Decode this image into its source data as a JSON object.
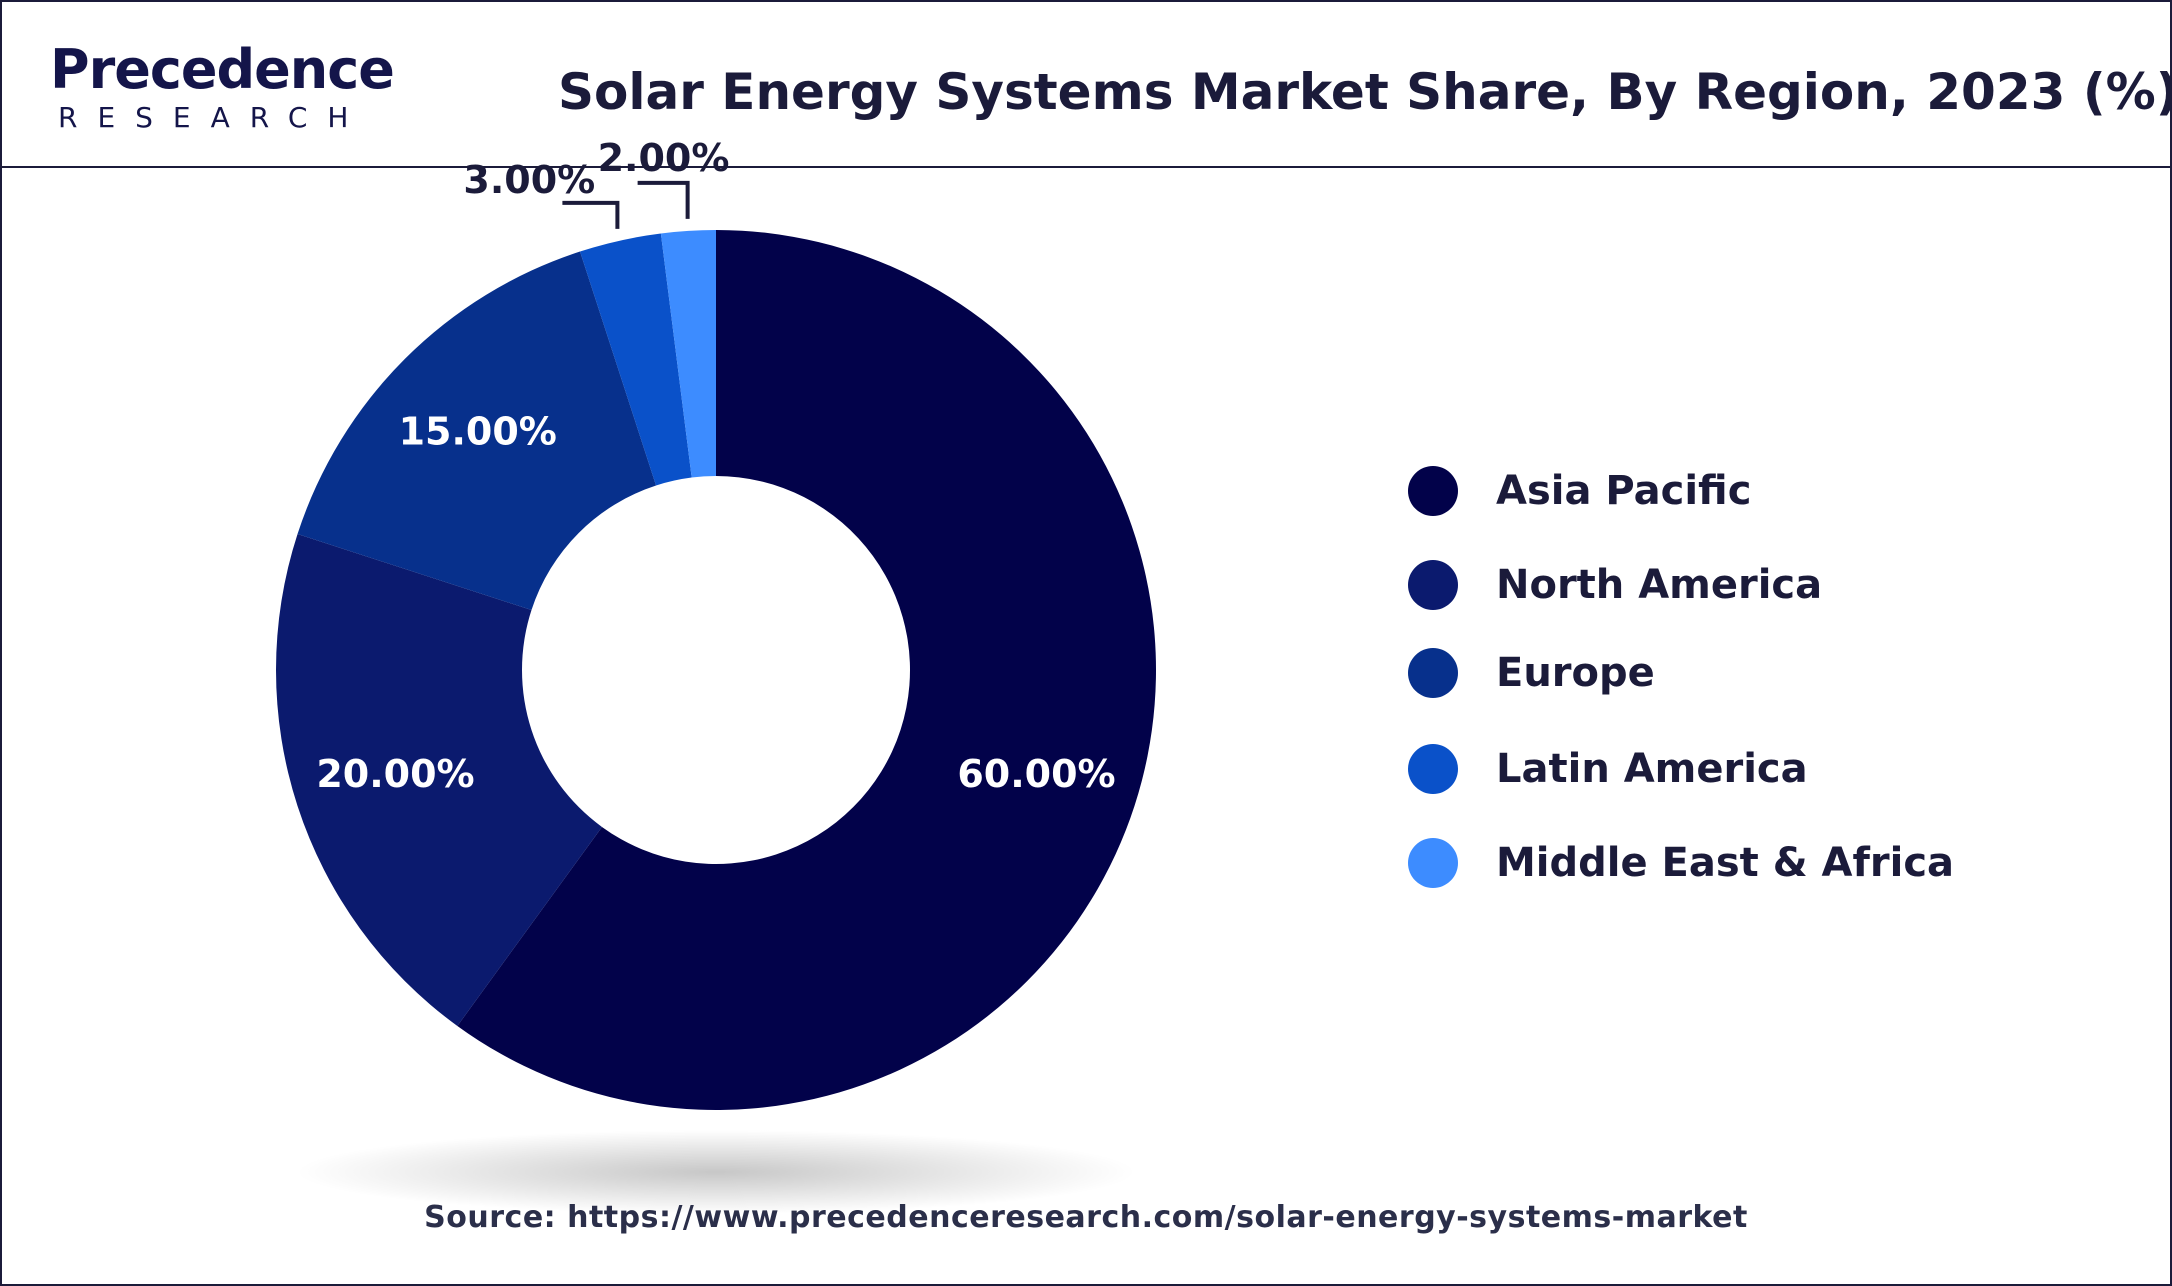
{
  "header": {
    "logo_word": "Precedence",
    "logo_sub": "RESEARCH",
    "title": "Solar Energy Systems Market Share, By Region, 2023 (%)"
  },
  "source": "Source: https://www.precedenceresearch.com/solar-energy-systems-market",
  "colors": {
    "Asia Pacific": "#02024a",
    "North America": "#0b1a6e",
    "Europe": "#07308c",
    "Latin America": "#0a51c9",
    "Middle East & Africa": "#3d8cff",
    "text_dark": "#1b1b3a"
  },
  "chart_data": {
    "type": "pie",
    "style": "donut",
    "title": "Solar Energy Systems Market Share, By Region, 2023 (%)",
    "categories": [
      "Asia Pacific",
      "North America",
      "Europe",
      "Latin America",
      "Middle East & Africa"
    ],
    "values": [
      60,
      20,
      15,
      3,
      2
    ],
    "labels": [
      "60.00%",
      "20.00%",
      "15.00%",
      "3.00%",
      "2.00%"
    ],
    "unit": "%",
    "start_angle_deg": 0,
    "direction": "clockwise",
    "legend_position": "right"
  }
}
